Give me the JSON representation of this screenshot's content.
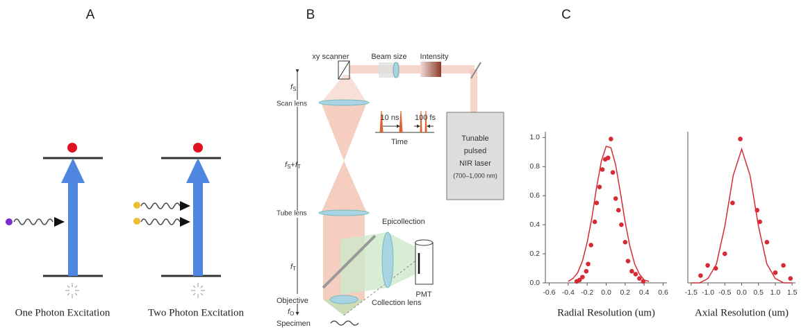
{
  "panel_a": {
    "label": "A",
    "captions": [
      "One Photon Excitation",
      "Two Photon Excitation"
    ]
  },
  "panel_b": {
    "label": "B",
    "top_labels": [
      "xy scanner",
      "Beam size",
      "Intensity"
    ],
    "laser": [
      "Tunable",
      "pulsed",
      "NIR laser",
      "(700–1,000 nm)"
    ],
    "pulses": [
      "10 ns",
      "100 fs",
      "Time"
    ],
    "parts": [
      "Scan lens",
      "Tube lens",
      "Objective",
      "Specimen",
      "Epicollection",
      "Collection lens",
      "PMT"
    ],
    "focal_lengths": [
      {
        "symbol": "f",
        "subscript": "S"
      },
      {
        "symbol": "f",
        "subscript": "S",
        "plus": "+",
        "symbol2": "f",
        "subscript2": "T"
      },
      {
        "symbol": "f",
        "subscript": "T"
      },
      {
        "symbol": "f",
        "subscript": "O"
      }
    ]
  },
  "panel_c": {
    "label": "C"
  },
  "chart_data": [
    {
      "type": "scatter",
      "x_label": "Radial Resolution (um)",
      "xlim": [
        -0.64,
        0.64
      ],
      "ylim": [
        0,
        1.04
      ],
      "xticks": [
        -0.6,
        -0.4,
        -0.2,
        {
          "value": 0,
          "label": "0.0"
        },
        0.2,
        0.4,
        0.6
      ],
      "yticks": [
        {
          "value": 0,
          "label": "0.0"
        },
        0.2,
        0.4,
        0.6,
        0.8,
        {
          "value": 1,
          "label": "1.0"
        }
      ],
      "series": [
        {
          "style": "markers",
          "color": "#d62a35",
          "x": [
            -0.31,
            -0.28,
            -0.25,
            -0.21,
            -0.19,
            -0.16,
            -0.12,
            -0.1,
            -0.07,
            -0.04,
            -0.01,
            0.02,
            0.05,
            0.07,
            0.1,
            0.13,
            0.16,
            0.2,
            0.23,
            0.27,
            0.31,
            0.35,
            0.39
          ],
          "values": [
            0.01,
            0.02,
            0.04,
            0.08,
            0.13,
            0.26,
            0.42,
            0.55,
            0.66,
            0.78,
            0.85,
            0.86,
            0.99,
            0.76,
            0.58,
            0.5,
            0.4,
            0.28,
            0.15,
            0.08,
            0.06,
            0.03,
            0.01
          ]
        },
        {
          "style": "line",
          "color": "#d62a35",
          "x": [
            -0.4,
            -0.35,
            -0.3,
            -0.25,
            -0.2,
            -0.15,
            -0.1,
            -0.05,
            0,
            0.05,
            0.1,
            0.15,
            0.2,
            0.25,
            0.3,
            0.35,
            0.4,
            0.45
          ],
          "values": [
            0.01,
            0.03,
            0.07,
            0.15,
            0.28,
            0.45,
            0.66,
            0.84,
            0.94,
            0.93,
            0.81,
            0.62,
            0.42,
            0.25,
            0.13,
            0.06,
            0.02,
            0.01
          ]
        }
      ]
    },
    {
      "type": "scatter",
      "x_label": "Axial Resolution (um)",
      "xlim": [
        -1.6,
        1.6
      ],
      "ylim": [
        0,
        1.04
      ],
      "xticks": [
        -1.5,
        {
          "value": -1,
          "label": "-1.0"
        },
        -0.5,
        {
          "value": 0,
          "label": "0.0"
        },
        0.5,
        {
          "value": 1,
          "label": "1.0"
        },
        1.5
      ],
      "series": [
        {
          "style": "markers",
          "color": "#d62a35",
          "x": [
            -1.22,
            -1.01,
            -0.77,
            -0.5,
            -0.27,
            -0.04,
            0.46,
            0.54,
            0.75,
            1.0,
            1.24,
            1.45
          ],
          "values": [
            0.05,
            0.12,
            0.1,
            0.2,
            0.55,
            0.99,
            0.5,
            0.42,
            0.28,
            0.07,
            0.12,
            0.03
          ]
        },
        {
          "style": "line",
          "color": "#d62a35",
          "x": [
            -1.5,
            -1.25,
            -1,
            -0.75,
            -0.5,
            -0.25,
            0,
            0.25,
            0.5,
            0.75,
            1,
            1.25,
            1.5
          ],
          "values": [
            0,
            0,
            0.03,
            0.13,
            0.39,
            0.74,
            0.92,
            0.74,
            0.39,
            0.13,
            0.03,
            0,
            0
          ]
        }
      ]
    }
  ]
}
